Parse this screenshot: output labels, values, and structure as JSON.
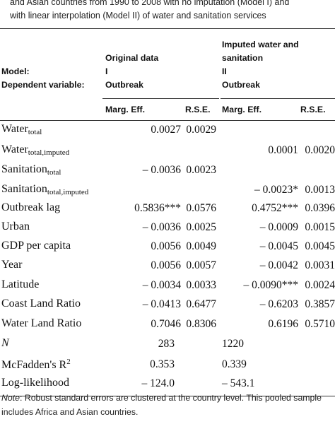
{
  "caption": {
    "line1": "and Asian countries from 1990 to 2008 with no imputation (Model I) and",
    "line2": "with linear interpolation (Model II) of water and sanitation services"
  },
  "header": {
    "model_label": "Model:",
    "dep_label": "Dependent variable:",
    "col_group_1": {
      "line1": "Original data",
      "line2": "I",
      "line3": "Outbreak"
    },
    "col_group_2": {
      "line1": "Imputed water and",
      "line2": "sanitation",
      "line3": "II",
      "line4": "Outbreak"
    },
    "sub": {
      "me1": "Marg. Eff.",
      "rse1": "R.S.E.",
      "me2": "Marg. Eff.",
      "rse2": "R.S.E."
    }
  },
  "rows": [
    {
      "base": "Water",
      "sub": "total",
      "sup": "",
      "me1": "0.0027",
      "rse1": "0.0029",
      "me2": "",
      "rse2": ""
    },
    {
      "base": "Water",
      "sub": "total,imputed",
      "sup": "",
      "me1": "",
      "rse1": "",
      "me2": "0.0001",
      "rse2": "0.0020"
    },
    {
      "base": "Sanitation",
      "sub": "total",
      "sup": "",
      "me1": "– 0.0036",
      "rse1": "0.0023",
      "me2": "",
      "rse2": ""
    },
    {
      "base": "Sanitation",
      "sub": "total,imputed",
      "sup": "",
      "me1": "",
      "rse1": "",
      "me2": "– 0.0023*",
      "rse2": "0.0013"
    },
    {
      "base": "Outbreak lag",
      "sub": "",
      "sup": "",
      "me1": "0.5836***",
      "rse1": "0.0576",
      "me2": "0.4752***",
      "rse2": "0.0396"
    },
    {
      "base": "Urban",
      "sub": "",
      "sup": "",
      "me1": "– 0.0036",
      "rse1": "0.0025",
      "me2": "– 0.0009",
      "rse2": "0.0015"
    },
    {
      "base": "GDP per capita",
      "sub": "",
      "sup": "",
      "me1": "0.0056",
      "rse1": "0.0049",
      "me2": "– 0.0045",
      "rse2": "0.0045"
    },
    {
      "base": "Year",
      "sub": "",
      "sup": "",
      "me1": "0.0056",
      "rse1": "0.0057",
      "me2": "– 0.0042",
      "rse2": "0.0031"
    },
    {
      "base": "Latitude",
      "sub": "",
      "sup": "",
      "me1": "– 0.0034",
      "rse1": "0.0033",
      "me2": "– 0.0090***",
      "rse2": "0.0024"
    },
    {
      "base": "Coast Land Ratio",
      "sub": "",
      "sup": "",
      "me1": "– 0.0413",
      "rse1": "0.6477",
      "me2": "– 0.6203",
      "rse2": "0.3857"
    },
    {
      "base": "Water Land Ratio",
      "sub": "",
      "sup": "",
      "me1": "0.7046",
      "rse1": "0.8306",
      "me2": "0.6196",
      "rse2": "0.5710"
    }
  ],
  "stats": [
    {
      "label": "N",
      "italic": true,
      "sup": "",
      "v1": "283",
      "v2": "1220"
    },
    {
      "label": "McFadden's R",
      "italic": false,
      "sup": "2",
      "v1": "0.353",
      "v2": "0.339"
    },
    {
      "label": "Log-likelihood",
      "italic": false,
      "sup": "",
      "v1": "– 124.0",
      "v2": "– 543.1"
    }
  ],
  "note": {
    "prefix": "Note",
    "text": ": Robust standard errors are clustered at the country level. This pooled sample includes Africa and Asian countries."
  }
}
